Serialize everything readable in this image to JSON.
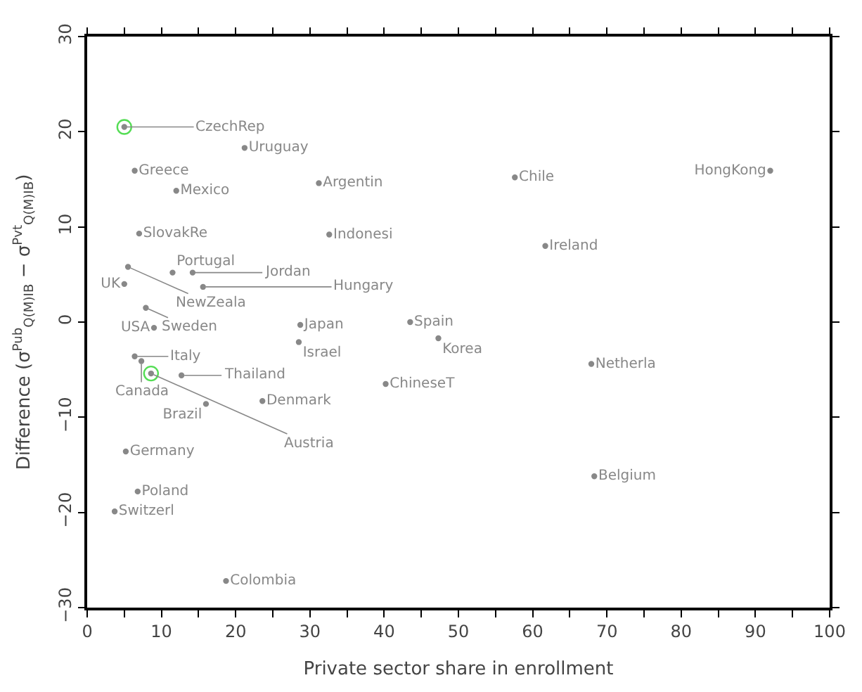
{
  "chart_data": {
    "type": "scatter",
    "xlabel": "Private sector share in enrollment",
    "ylabel": "Difference (σ$^{Pub}$$_{Q(M)IB}$ − σ$^{Pvt}$$_{Q(M)IB}$)",
    "series": [
      {
        "color": "#888888",
        "marker": "none",
        "x": [
          5.0,
          21.2,
          6.4,
          12.0,
          31.2,
          57.6,
          92.0,
          7.0,
          32.6,
          61.7,
          5.5,
          11.5,
          14.2,
          5.0,
          15.6,
          7.9,
          9.0,
          28.7,
          28.5,
          43.5,
          47.3,
          6.4,
          7.3,
          8.6,
          12.7,
          67.9,
          40.2,
          16.0,
          23.6,
          5.2,
          68.3,
          6.8,
          3.7,
          18.7
        ],
        "values": [
          20.5,
          18.3,
          15.9,
          13.8,
          14.6,
          15.2,
          15.9,
          9.3,
          9.2,
          8.0,
          5.8,
          5.2,
          5.2,
          4.0,
          3.7,
          1.5,
          -0.6,
          -0.3,
          -2.1,
          0.0,
          -1.7,
          -3.6,
          -4.1,
          -5.4,
          -5.6,
          -4.4,
          -6.5,
          -8.6,
          -8.3,
          -13.6,
          -16.2,
          -17.8,
          -19.9,
          -27.2
        ],
        "value_labels": [
          "CzechRep",
          "Uruguay",
          "Greece",
          "Mexico",
          "Argentin",
          "Chile",
          "HongKong",
          "SlovakRe",
          "Indonesi",
          "Ireland",
          "NewZeala",
          "Portugal",
          "Jordan",
          "UK",
          "Hungary",
          "Sweden",
          "USA",
          "Japan",
          "Israel",
          "Spain",
          "Korea",
          "Italy",
          "Canada",
          "Austria",
          "Thailand",
          "Netherla",
          "ChineseT",
          "Brazil",
          "Denmark",
          "Germany",
          "Belgium",
          "Poland",
          "Switzerl",
          "Colombia"
        ]
      },
      {
        "color": "#55dd55",
        "marker": "circle",
        "x": [
          5.0,
          8.6
        ],
        "values": [
          20.5,
          -5.4
        ]
      }
    ],
    "xlim": [
      0,
      100
    ],
    "xticks": [
      0,
      {
        "value": 5,
        "label": null
      },
      10,
      {
        "value": 15,
        "label": null
      },
      20,
      {
        "value": 25,
        "label": null
      },
      30,
      {
        "value": 35,
        "label": null
      },
      40,
      {
        "value": 45,
        "label": null
      },
      50,
      {
        "value": 55,
        "label": null
      },
      60,
      {
        "value": 65,
        "label": null
      },
      70,
      {
        "value": 75,
        "label": null
      },
      80,
      {
        "value": 85,
        "label": null
      },
      90,
      {
        "value": 95,
        "label": null
      },
      100
    ],
    "ylim": [
      -30,
      30
    ],
    "yticks": [
      -30,
      -20,
      -10,
      0,
      10,
      20,
      30
    ]
  }
}
